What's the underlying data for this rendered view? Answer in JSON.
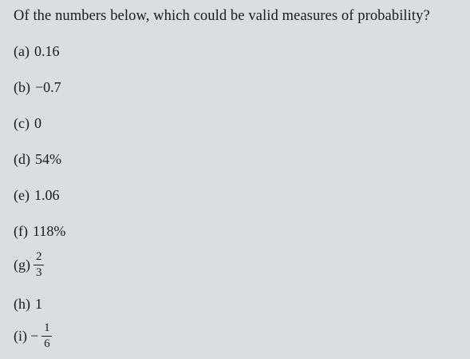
{
  "question": "Of the numbers below, which could be valid measures of probability?",
  "options": [
    {
      "label": "(a)",
      "value": "0.16"
    },
    {
      "label": "(b)",
      "value": "−0.7"
    },
    {
      "label": "(c)",
      "value": "0"
    },
    {
      "label": "(d)",
      "value": "54%"
    },
    {
      "label": "(e)",
      "value": "1.06"
    },
    {
      "label": "(f)",
      "value": "118%"
    },
    {
      "label": "(g)",
      "numerator": "2",
      "denominator": "3"
    },
    {
      "label": "(h)",
      "value": "1"
    },
    {
      "label": "(i)",
      "sign": "−",
      "numerator": "1",
      "denominator": "6"
    }
  ]
}
